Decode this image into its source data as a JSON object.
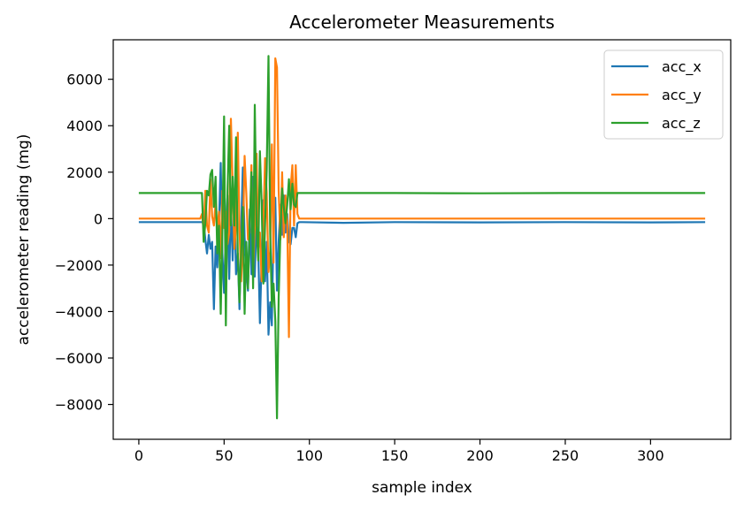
{
  "chart_data": {
    "type": "line",
    "title": "Accelerometer Measurements",
    "xlabel": "sample index",
    "ylabel": "accelerometer reading (mg)",
    "xlim": [
      -15,
      347
    ],
    "ylim": [
      -9500,
      7700
    ],
    "xticks": [
      0,
      50,
      100,
      150,
      200,
      250,
      300
    ],
    "xtick_labels": [
      "0",
      "50",
      "100",
      "150",
      "200",
      "250",
      "300"
    ],
    "yticks": [
      -8000,
      -6000,
      -4000,
      -2000,
      0,
      2000,
      4000,
      6000
    ],
    "ytick_labels": [
      "−8000",
      "−6000",
      "−4000",
      "−2000",
      "0",
      "2000",
      "4000",
      "6000"
    ],
    "grid": false,
    "legend_position": "top-right",
    "series": [
      {
        "name": "acc_x",
        "color": "#1f77b4",
        "points": [
          [
            0,
            -150
          ],
          [
            38,
            -150
          ],
          [
            39,
            -900
          ],
          [
            40,
            -1500
          ],
          [
            41,
            -700
          ],
          [
            42,
            -1300
          ],
          [
            43,
            -1000
          ],
          [
            44,
            -3900
          ],
          [
            45,
            -1200
          ],
          [
            46,
            -2100
          ],
          [
            47,
            -200
          ],
          [
            48,
            2400
          ],
          [
            49,
            -1500
          ],
          [
            50,
            -3200
          ],
          [
            51,
            -500
          ],
          [
            52,
            1000
          ],
          [
            53,
            -2600
          ],
          [
            54,
            600
          ],
          [
            55,
            -1800
          ],
          [
            56,
            900
          ],
          [
            57,
            -2400
          ],
          [
            58,
            -1500
          ],
          [
            59,
            -3900
          ],
          [
            60,
            -400
          ],
          [
            61,
            2200
          ],
          [
            62,
            -800
          ],
          [
            63,
            -2100
          ],
          [
            64,
            -3100
          ],
          [
            65,
            400
          ],
          [
            66,
            -2400
          ],
          [
            67,
            1800
          ],
          [
            68,
            -2500
          ],
          [
            69,
            300
          ],
          [
            70,
            -1300
          ],
          [
            71,
            -4500
          ],
          [
            72,
            -1700
          ],
          [
            73,
            800
          ],
          [
            74,
            -2700
          ],
          [
            75,
            -1000
          ],
          [
            76,
            -5000
          ],
          [
            77,
            -3600
          ],
          [
            78,
            -4600
          ],
          [
            79,
            -200
          ],
          [
            80,
            900
          ],
          [
            81,
            -3100
          ],
          [
            82,
            -1000
          ],
          [
            83,
            600
          ],
          [
            84,
            -700
          ],
          [
            85,
            1000
          ],
          [
            86,
            -600
          ],
          [
            87,
            200
          ],
          [
            88,
            -1000
          ],
          [
            89,
            -1100
          ],
          [
            90,
            -400
          ],
          [
            91,
            -400
          ],
          [
            92,
            -800
          ],
          [
            93,
            -200
          ],
          [
            94,
            -150
          ],
          [
            96,
            -150
          ],
          [
            120,
            -180
          ],
          [
            150,
            -150
          ],
          [
            200,
            -160
          ],
          [
            250,
            -150
          ],
          [
            300,
            -160
          ],
          [
            332,
            -150
          ]
        ]
      },
      {
        "name": "acc_y",
        "color": "#ff7f0e",
        "points": [
          [
            0,
            0
          ],
          [
            36,
            0
          ],
          [
            37,
            200
          ],
          [
            38,
            -500
          ],
          [
            39,
            1200
          ],
          [
            40,
            -300
          ],
          [
            41,
            -600
          ],
          [
            42,
            1700
          ],
          [
            43,
            100
          ],
          [
            44,
            -300
          ],
          [
            45,
            700
          ],
          [
            46,
            -600
          ],
          [
            47,
            300
          ],
          [
            48,
            -1700
          ],
          [
            49,
            1200
          ],
          [
            50,
            -400
          ],
          [
            51,
            300
          ],
          [
            52,
            -1100
          ],
          [
            53,
            -600
          ],
          [
            54,
            4300
          ],
          [
            55,
            1400
          ],
          [
            56,
            -1300
          ],
          [
            57,
            -300
          ],
          [
            58,
            3700
          ],
          [
            59,
            -400
          ],
          [
            60,
            -2700
          ],
          [
            61,
            -1000
          ],
          [
            62,
            2700
          ],
          [
            63,
            1100
          ],
          [
            64,
            -900
          ],
          [
            65,
            -600
          ],
          [
            66,
            2300
          ],
          [
            67,
            -2400
          ],
          [
            68,
            -300
          ],
          [
            69,
            2800
          ],
          [
            70,
            -1300
          ],
          [
            71,
            -600
          ],
          [
            72,
            -2700
          ],
          [
            73,
            -300
          ],
          [
            74,
            2600
          ],
          [
            75,
            1100
          ],
          [
            76,
            -2300
          ],
          [
            77,
            -1400
          ],
          [
            78,
            3200
          ],
          [
            79,
            -1900
          ],
          [
            80,
            6900
          ],
          [
            81,
            6500
          ],
          [
            82,
            1200
          ],
          [
            83,
            -900
          ],
          [
            84,
            2000
          ],
          [
            85,
            -800
          ],
          [
            86,
            1000
          ],
          [
            87,
            -200
          ],
          [
            88,
            -5100
          ],
          [
            89,
            1300
          ],
          [
            90,
            2300
          ],
          [
            91,
            -300
          ],
          [
            92,
            2300
          ],
          [
            93,
            200
          ],
          [
            94,
            0
          ],
          [
            150,
            0
          ],
          [
            200,
            0
          ],
          [
            250,
            0
          ],
          [
            332,
            0
          ]
        ]
      },
      {
        "name": "acc_z",
        "color": "#2ca02c",
        "points": [
          [
            0,
            1100
          ],
          [
            37,
            1100
          ],
          [
            38,
            -1000
          ],
          [
            39,
            -200
          ],
          [
            40,
            1200
          ],
          [
            41,
            1000
          ],
          [
            42,
            1900
          ],
          [
            43,
            2100
          ],
          [
            44,
            500
          ],
          [
            45,
            1800
          ],
          [
            46,
            -1500
          ],
          [
            47,
            -300
          ],
          [
            48,
            -4100
          ],
          [
            49,
            -500
          ],
          [
            50,
            4400
          ],
          [
            51,
            -4600
          ],
          [
            52,
            1200
          ],
          [
            53,
            4000
          ],
          [
            54,
            -300
          ],
          [
            55,
            1800
          ],
          [
            56,
            -300
          ],
          [
            57,
            3500
          ],
          [
            58,
            -1600
          ],
          [
            59,
            -3600
          ],
          [
            60,
            -1500
          ],
          [
            61,
            500
          ],
          [
            62,
            -4100
          ],
          [
            63,
            -1000
          ],
          [
            64,
            -3000
          ],
          [
            65,
            -400
          ],
          [
            66,
            2000
          ],
          [
            67,
            -3000
          ],
          [
            68,
            4900
          ],
          [
            69,
            -300
          ],
          [
            70,
            -1800
          ],
          [
            71,
            2900
          ],
          [
            72,
            600
          ],
          [
            73,
            -2800
          ],
          [
            74,
            -300
          ],
          [
            75,
            2100
          ],
          [
            76,
            7000
          ],
          [
            77,
            -600
          ],
          [
            78,
            -3800
          ],
          [
            79,
            -2800
          ],
          [
            80,
            -4400
          ],
          [
            81,
            -8600
          ],
          [
            82,
            -3400
          ],
          [
            83,
            -500
          ],
          [
            84,
            1300
          ],
          [
            85,
            500
          ],
          [
            86,
            -200
          ],
          [
            87,
            600
          ],
          [
            88,
            1700
          ],
          [
            89,
            400
          ],
          [
            90,
            1500
          ],
          [
            91,
            600
          ],
          [
            92,
            500
          ],
          [
            93,
            1100
          ],
          [
            96,
            1100
          ],
          [
            150,
            1100
          ],
          [
            200,
            1090
          ],
          [
            250,
            1100
          ],
          [
            300,
            1100
          ],
          [
            332,
            1100
          ]
        ]
      }
    ]
  }
}
